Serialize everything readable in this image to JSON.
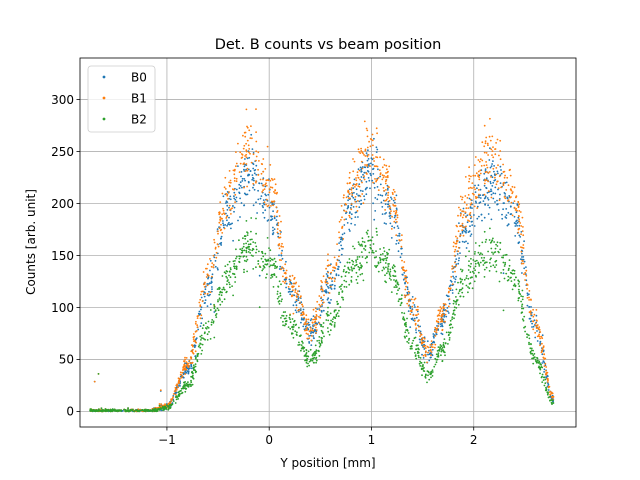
{
  "chart_data": {
    "type": "scatter",
    "title": "Det. B counts vs beam position",
    "xlabel": "Y position [mm]",
    "ylabel": "Counts [arb. unit]",
    "xlim": [
      -1.85,
      3.0
    ],
    "ylim": [
      -15,
      340
    ],
    "x_ticks": [
      {
        "value": -1,
        "label": "−1"
      },
      {
        "value": 0,
        "label": "0"
      },
      {
        "value": 1,
        "label": "1"
      },
      {
        "value": 2,
        "label": "2"
      }
    ],
    "y_ticks": [
      {
        "value": 0,
        "label": "0"
      },
      {
        "value": 50,
        "label": "50"
      },
      {
        "value": 100,
        "label": "100"
      },
      {
        "value": 150,
        "label": "150"
      },
      {
        "value": 200,
        "label": "200"
      },
      {
        "value": 250,
        "label": "250"
      },
      {
        "value": 300,
        "label": "300"
      }
    ],
    "grid": true,
    "legend_position": "top-left",
    "x_range": [
      -1.75,
      2.78
    ],
    "series": [
      {
        "name": "B0",
        "color": "#1f77b4",
        "profile": [
          [
            -1.75,
            0
          ],
          [
            -1.2,
            0
          ],
          [
            -1.0,
            4
          ],
          [
            -0.8,
            40
          ],
          [
            -0.6,
            120
          ],
          [
            -0.4,
            195
          ],
          [
            -0.2,
            230
          ],
          [
            0.0,
            200
          ],
          [
            0.2,
            120
          ],
          [
            0.4,
            75
          ],
          [
            0.6,
            120
          ],
          [
            0.8,
            200
          ],
          [
            1.0,
            232
          ],
          [
            1.2,
            195
          ],
          [
            1.4,
            95
          ],
          [
            1.55,
            55
          ],
          [
            1.7,
            90
          ],
          [
            1.9,
            175
          ],
          [
            2.1,
            215
          ],
          [
            2.2,
            225
          ],
          [
            2.4,
            185
          ],
          [
            2.6,
            80
          ],
          [
            2.78,
            12
          ]
        ]
      },
      {
        "name": "B1",
        "color": "#ff7f0e",
        "profile": [
          [
            -1.75,
            0
          ],
          [
            -1.2,
            0
          ],
          [
            -1.0,
            5
          ],
          [
            -0.8,
            45
          ],
          [
            -0.6,
            130
          ],
          [
            -0.4,
            210
          ],
          [
            -0.2,
            255
          ],
          [
            0.0,
            215
          ],
          [
            0.2,
            125
          ],
          [
            0.4,
            80
          ],
          [
            0.6,
            130
          ],
          [
            0.8,
            215
          ],
          [
            1.0,
            255
          ],
          [
            1.2,
            205
          ],
          [
            1.4,
            100
          ],
          [
            1.55,
            57
          ],
          [
            1.7,
            95
          ],
          [
            1.9,
            190
          ],
          [
            2.1,
            240
          ],
          [
            2.2,
            250
          ],
          [
            2.4,
            200
          ],
          [
            2.6,
            85
          ],
          [
            2.78,
            14
          ]
        ]
      },
      {
        "name": "B2",
        "color": "#2ca02c",
        "profile": [
          [
            -1.75,
            0
          ],
          [
            -1.2,
            0
          ],
          [
            -1.0,
            3
          ],
          [
            -0.8,
            25
          ],
          [
            -0.6,
            80
          ],
          [
            -0.4,
            130
          ],
          [
            -0.2,
            160
          ],
          [
            0.0,
            140
          ],
          [
            0.2,
            85
          ],
          [
            0.4,
            50
          ],
          [
            0.6,
            85
          ],
          [
            0.8,
            140
          ],
          [
            1.0,
            160
          ],
          [
            1.2,
            135
          ],
          [
            1.4,
            65
          ],
          [
            1.55,
            35
          ],
          [
            1.7,
            60
          ],
          [
            1.9,
            125
          ],
          [
            2.1,
            150
          ],
          [
            2.2,
            155
          ],
          [
            2.4,
            125
          ],
          [
            2.6,
            50
          ],
          [
            2.78,
            8
          ]
        ]
      }
    ]
  }
}
